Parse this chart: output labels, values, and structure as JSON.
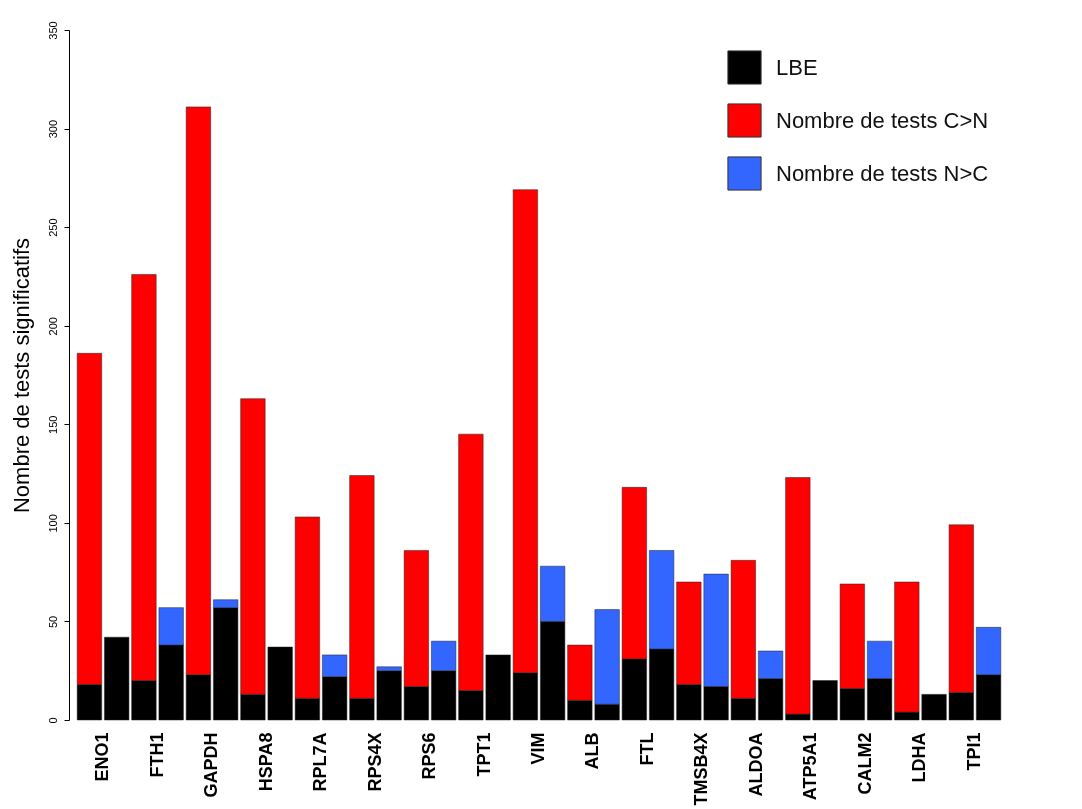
{
  "chart_data": {
    "type": "bar",
    "stacked": true,
    "ylabel": "Nombre de tests significatifs",
    "categories": [
      "ENO1",
      null,
      "FTH1",
      null,
      "GAPDH",
      null,
      "HSPA8",
      null,
      "RPL7A",
      null,
      "RPS4X",
      null,
      "RPS6",
      null,
      "TPT1",
      null,
      "VIM",
      null,
      "ALB",
      null,
      "FTL",
      null,
      "TMSB4X",
      null,
      "ALDOA",
      null,
      "ATP5A1",
      null,
      "CALM2",
      null,
      "LDHA",
      null,
      "TPI1",
      null
    ],
    "series": [
      {
        "name": "LBE",
        "color": "#000000",
        "values": [
          18,
          42,
          20,
          38,
          23,
          57,
          13,
          37,
          11,
          22,
          11,
          25,
          17,
          25,
          15,
          33,
          24,
          50,
          10,
          8,
          31,
          36,
          18,
          17,
          11,
          21,
          3,
          20,
          16,
          21,
          4,
          13,
          14,
          23
        ]
      },
      {
        "name": "Nombre de tests C>N",
        "color": "#ff0000",
        "values": [
          168,
          null,
          206,
          null,
          288,
          null,
          150,
          null,
          92,
          null,
          113,
          null,
          69,
          null,
          130,
          null,
          245,
          null,
          28,
          null,
          87,
          null,
          52,
          null,
          70,
          null,
          120,
          null,
          53,
          null,
          66,
          null,
          85,
          null
        ]
      },
      {
        "name": "Nombre de tests N>C",
        "color": "#3366ff",
        "values": [
          null,
          null,
          null,
          19,
          null,
          4,
          null,
          null,
          null,
          11,
          null,
          2,
          null,
          15,
          null,
          null,
          null,
          28,
          null,
          48,
          null,
          50,
          null,
          57,
          null,
          14,
          null,
          null,
          null,
          19,
          null,
          null,
          null,
          24
        ]
      }
    ],
    "ylim": [
      0,
      350
    ],
    "yticks": [
      0,
      50,
      100,
      150,
      200,
      250,
      300,
      350
    ],
    "legend": "top right"
  }
}
